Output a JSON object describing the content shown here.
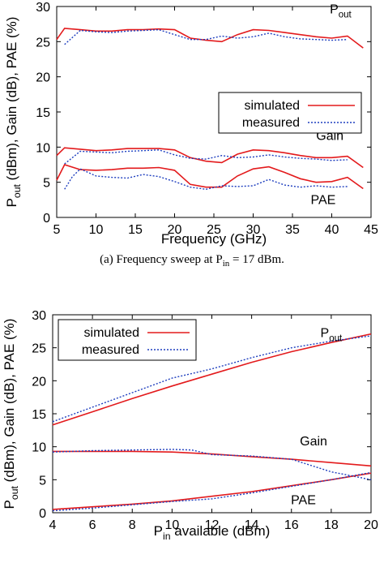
{
  "captions": {
    "a": {
      "prefix": "(a) Frequency sweep at P",
      "sub": "in",
      "suffix": " = 17 dBm."
    }
  },
  "chart_data": [
    {
      "type": "line",
      "xlabel": "Frequency (GHz)",
      "ylabel": "P_out (dBm), Gain (dB), PAE (%)",
      "xlim": [
        5,
        45
      ],
      "ylim": [
        0,
        30
      ],
      "xticks": [
        5,
        10,
        15,
        20,
        25,
        30,
        35,
        40,
        45
      ],
      "yticks": [
        0,
        5,
        10,
        15,
        20,
        25,
        30
      ],
      "grid": false,
      "legend": {
        "placement": "center-right",
        "entries": [
          "simulated",
          "measured"
        ]
      },
      "annotations": [
        "P_out",
        "Gain",
        "PAE"
      ],
      "colors": {
        "simulated": "#e31a1c",
        "measured": "#1f3fbf"
      },
      "series": [
        {
          "name": "simulated",
          "group": "Pout",
          "x": [
            5,
            6,
            8,
            10,
            12,
            14,
            16,
            18,
            20,
            22,
            24,
            26,
            28,
            30,
            32,
            34,
            36,
            38,
            40,
            42,
            44
          ],
          "y": [
            25.3,
            26.9,
            26.7,
            26.5,
            26.5,
            26.7,
            26.7,
            26.8,
            26.7,
            25.5,
            25.2,
            25.0,
            26.0,
            26.7,
            26.6,
            26.3,
            26.0,
            25.7,
            25.5,
            25.8,
            24.1
          ]
        },
        {
          "name": "measured",
          "group": "Pout",
          "x": [
            6,
            8,
            10,
            12,
            14,
            16,
            18,
            20,
            22,
            24,
            26,
            28,
            30,
            32,
            34,
            36,
            38,
            40,
            42
          ],
          "y": [
            24.6,
            26.6,
            26.4,
            26.3,
            26.5,
            26.6,
            26.7,
            26.0,
            25.3,
            25.3,
            25.8,
            25.5,
            25.7,
            26.2,
            25.7,
            25.4,
            25.3,
            25.2,
            25.3
          ]
        },
        {
          "name": "simulated",
          "group": "Gain",
          "x": [
            5,
            6,
            8,
            10,
            12,
            14,
            16,
            18,
            20,
            22,
            24,
            26,
            28,
            30,
            32,
            34,
            36,
            38,
            40,
            42,
            44
          ],
          "y": [
            8.8,
            9.9,
            9.7,
            9.5,
            9.6,
            9.8,
            9.8,
            9.8,
            9.6,
            8.5,
            8.0,
            7.8,
            9.0,
            9.6,
            9.5,
            9.2,
            8.8,
            8.5,
            8.5,
            8.7,
            7.1
          ]
        },
        {
          "name": "measured",
          "group": "Gain",
          "x": [
            6,
            8,
            10,
            12,
            14,
            16,
            18,
            20,
            22,
            24,
            26,
            28,
            30,
            32,
            34,
            36,
            38,
            40,
            42
          ],
          "y": [
            7.6,
            9.4,
            9.3,
            9.2,
            9.4,
            9.5,
            9.6,
            8.9,
            8.4,
            8.3,
            8.8,
            8.5,
            8.6,
            8.9,
            8.6,
            8.4,
            8.3,
            8.1,
            8.2
          ]
        },
        {
          "name": "simulated",
          "group": "PAE",
          "x": [
            5,
            6,
            8,
            10,
            12,
            14,
            16,
            18,
            20,
            22,
            24,
            26,
            28,
            30,
            32,
            34,
            36,
            38,
            40,
            42,
            44
          ],
          "y": [
            5.3,
            7.5,
            6.8,
            6.7,
            6.8,
            7.0,
            7.0,
            7.1,
            6.7,
            4.7,
            4.3,
            4.3,
            5.9,
            6.9,
            7.2,
            6.4,
            5.5,
            5.0,
            5.1,
            5.7,
            4.1
          ]
        },
        {
          "name": "measured",
          "group": "PAE",
          "x": [
            6,
            7,
            8,
            10,
            12,
            14,
            16,
            18,
            20,
            22,
            24,
            26,
            28,
            30,
            32,
            34,
            36,
            38,
            40,
            42
          ],
          "y": [
            4.0,
            5.8,
            6.9,
            5.9,
            5.7,
            5.6,
            6.1,
            5.8,
            5.1,
            4.3,
            4.0,
            4.5,
            4.4,
            4.5,
            5.4,
            4.6,
            4.3,
            4.5,
            4.3,
            4.4
          ]
        }
      ]
    },
    {
      "type": "line",
      "xlabel": "P_in available (dBm)",
      "ylabel": "P_out (dBm), Gain (dB), PAE (%)",
      "xlim": [
        4,
        20
      ],
      "ylim": [
        0,
        30
      ],
      "xticks": [
        4,
        6,
        8,
        10,
        12,
        14,
        16,
        18,
        20
      ],
      "yticks": [
        0,
        5,
        10,
        15,
        20,
        25,
        30
      ],
      "grid": false,
      "legend": {
        "placement": "top-left",
        "entries": [
          "simulated",
          "measured"
        ]
      },
      "annotations": [
        "P_out",
        "Gain",
        "PAE"
      ],
      "colors": {
        "simulated": "#e31a1c",
        "measured": "#1f3fbf"
      },
      "series": [
        {
          "name": "simulated",
          "group": "Pout",
          "x": [
            4,
            6,
            8,
            10,
            12,
            14,
            16,
            18,
            20
          ],
          "y": [
            13.3,
            15.3,
            17.3,
            19.2,
            21.0,
            22.8,
            24.4,
            25.8,
            27.1
          ]
        },
        {
          "name": "measured",
          "group": "Pout",
          "x": [
            4,
            6,
            8,
            10,
            12,
            14,
            16,
            18,
            20
          ],
          "y": [
            13.8,
            16.0,
            18.2,
            20.4,
            21.8,
            23.5,
            25.0,
            26.0,
            26.8
          ]
        },
        {
          "name": "simulated",
          "group": "Gain",
          "x": [
            4,
            6,
            8,
            10,
            12,
            14,
            16,
            18,
            20
          ],
          "y": [
            9.3,
            9.3,
            9.3,
            9.2,
            8.9,
            8.5,
            8.1,
            7.6,
            7.1
          ]
        },
        {
          "name": "measured",
          "group": "Gain",
          "x": [
            4,
            6,
            8,
            10,
            11,
            12,
            14,
            16,
            18,
            20
          ],
          "y": [
            9.2,
            9.4,
            9.5,
            9.6,
            9.5,
            8.8,
            8.6,
            8.1,
            6.2,
            5.0
          ]
        },
        {
          "name": "simulated",
          "group": "PAE",
          "x": [
            4,
            6,
            8,
            10,
            12,
            14,
            16,
            18,
            20
          ],
          "y": [
            0.5,
            0.9,
            1.3,
            1.8,
            2.5,
            3.2,
            4.1,
            5.0,
            6.0
          ]
        },
        {
          "name": "measured",
          "group": "PAE",
          "x": [
            4,
            6,
            8,
            10,
            12,
            14,
            16,
            18,
            20
          ],
          "y": [
            0.3,
            0.7,
            1.2,
            1.7,
            2.1,
            3.0,
            4.0,
            5.0,
            6.1
          ]
        }
      ]
    }
  ]
}
